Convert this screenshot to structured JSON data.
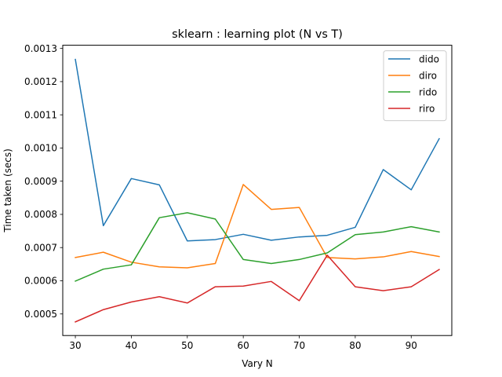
{
  "chart_data": {
    "type": "line",
    "title": "sklearn : learning plot (N vs T)",
    "xlabel": "Vary N",
    "ylabel": "Time taken (secs)",
    "xlim": [
      27.75,
      97.25
    ],
    "ylim": [
      0.000435,
      0.0013096
    ],
    "x": [
      30,
      35,
      40,
      45,
      50,
      55,
      60,
      65,
      70,
      75,
      80,
      85,
      90,
      95
    ],
    "xticks": [
      30,
      40,
      50,
      60,
      70,
      80,
      90
    ],
    "xtick_labels": [
      "30",
      "40",
      "50",
      "60",
      "70",
      "80",
      "90"
    ],
    "yticks": [
      0.0005,
      0.0006,
      0.0007,
      0.0008,
      0.0009,
      0.001,
      0.0011,
      0.0012,
      0.0013
    ],
    "ytick_labels": [
      "0.0005",
      "0.0006",
      "0.0007",
      "0.0008",
      "0.0009",
      "0.0010",
      "0.0011",
      "0.0012",
      "0.0013"
    ],
    "grid": false,
    "legend_position": "upper right",
    "series": [
      {
        "name": "dido",
        "color": "#1f77b4",
        "values": [
          0.001267,
          0.000766,
          0.000908,
          0.000889,
          0.00072,
          0.000724,
          0.00074,
          0.000722,
          0.000732,
          0.000737,
          0.000761,
          0.000935,
          0.000874,
          0.001028
        ]
      },
      {
        "name": "diro",
        "color": "#ff7f0e",
        "values": [
          0.00067,
          0.000686,
          0.000656,
          0.000642,
          0.000639,
          0.000652,
          0.00089,
          0.000815,
          0.000821,
          0.00067,
          0.000666,
          0.000672,
          0.000688,
          0.000673
        ]
      },
      {
        "name": "rido",
        "color": "#2ca02c",
        "values": [
          0.000599,
          0.000635,
          0.000648,
          0.00079,
          0.000805,
          0.000786,
          0.000664,
          0.000652,
          0.000664,
          0.000684,
          0.000739,
          0.000747,
          0.000763,
          0.000747
        ]
      },
      {
        "name": "riro",
        "color": "#d62728",
        "values": [
          0.000476,
          0.000513,
          0.000536,
          0.000552,
          0.000533,
          0.000582,
          0.000584,
          0.000598,
          0.00054,
          0.000677,
          0.000582,
          0.00057,
          0.000582,
          0.000634
        ]
      }
    ]
  }
}
